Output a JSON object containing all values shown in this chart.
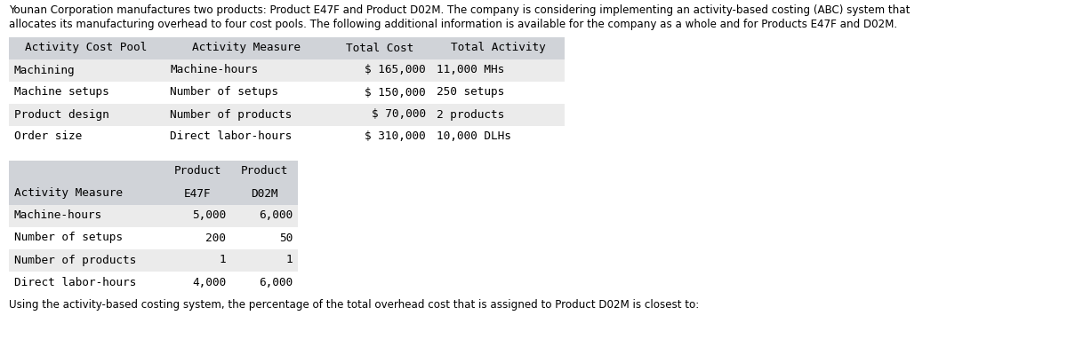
{
  "intro_text_line1": "Younan Corporation manufactures two products: Product E47F and Product D02M. The company is considering implementing an activity-based costing (ABC) system that",
  "intro_text_line2": "allocates its manufacturing overhead to four cost pools. The following additional information is available for the company as a whole and for Products E47F and D02M.",
  "table1_header": [
    "Activity Cost Pool",
    "Activity Measure",
    "Total Cost",
    "Total Activity"
  ],
  "table1_rows": [
    [
      "Machining",
      "Machine-hours",
      "$ 165,000",
      "11,000 MHs"
    ],
    [
      "Machine setups",
      "Number of setups",
      "$ 150,000",
      "250 setups"
    ],
    [
      "Product design",
      "Number of products",
      "$ 70,000",
      "2 products"
    ],
    [
      "Order size",
      "Direct labor-hours",
      "$ 310,000",
      "10,000 DLHs"
    ]
  ],
  "table2_header_row1": [
    "",
    "Product",
    "Product"
  ],
  "table2_header_row2": [
    "Activity Measure",
    "E47F",
    "D02M"
  ],
  "table2_rows": [
    [
      "Machine-hours",
      "5,000",
      "6,000"
    ],
    [
      "Number of setups",
      "200",
      "50"
    ],
    [
      "Number of products",
      "1",
      "1"
    ],
    [
      "Direct labor-hours",
      "4,000",
      "6,000"
    ]
  ],
  "footer_text": "Using the activity-based costing system, the percentage of the total overhead cost that is assigned to Product D02M is closest to:",
  "bg_color": "#ffffff",
  "header_bg_color": "#d0d3d8",
  "row_bg_alt": "#ebebeb",
  "row_bg_white": "#ffffff",
  "font_size": 9.2,
  "intro_font_size": 8.6,
  "mono_font": "DejaVu Sans Mono"
}
